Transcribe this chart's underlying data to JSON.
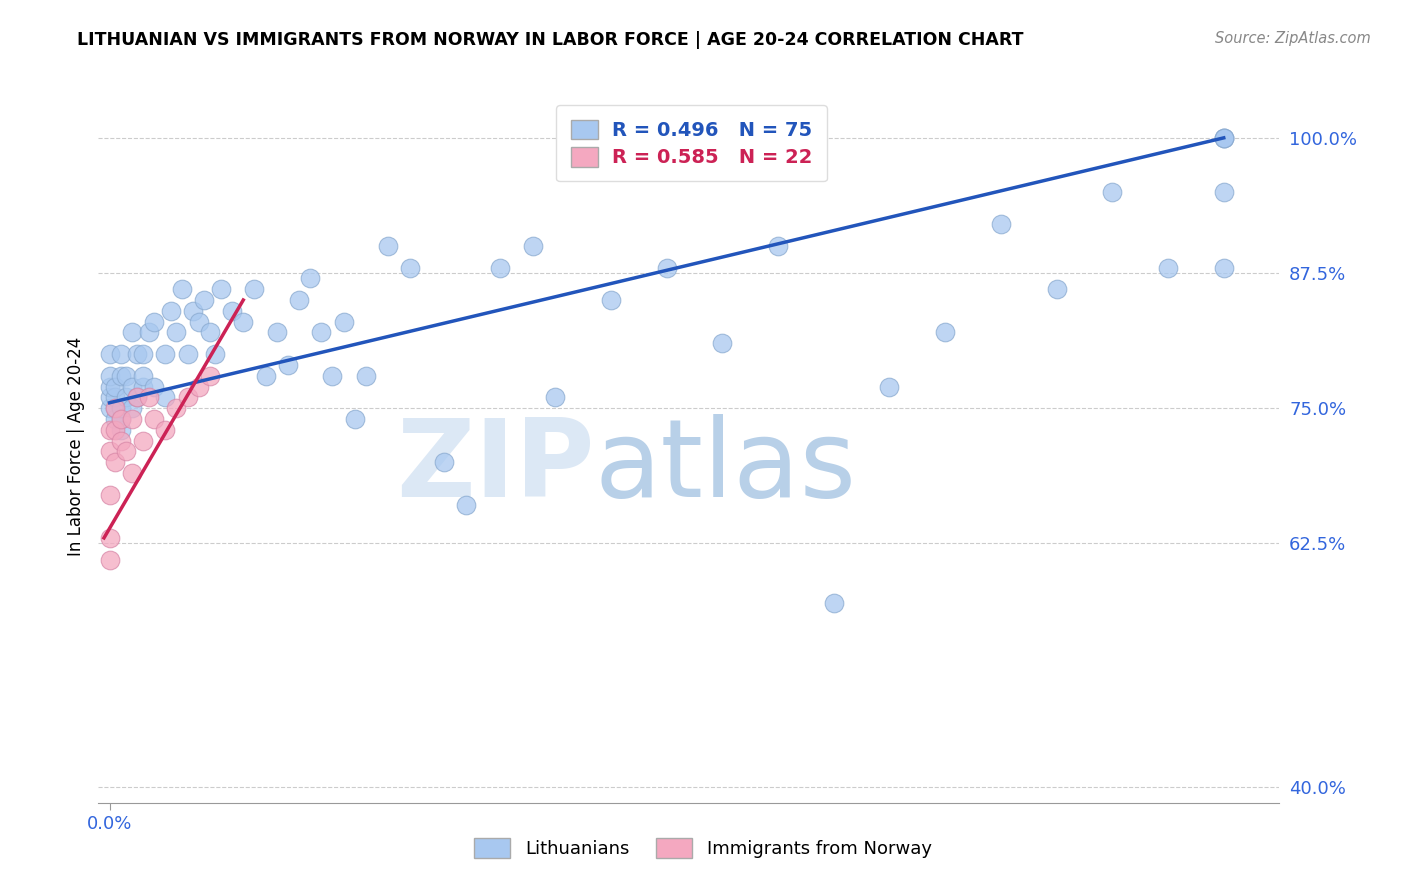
{
  "title": "LITHUANIAN VS IMMIGRANTS FROM NORWAY IN LABOR FORCE | AGE 20-24 CORRELATION CHART",
  "source": "Source: ZipAtlas.com",
  "ylabel": "In Labor Force | Age 20-24",
  "blue_label": "Lithuanians",
  "pink_label": "Immigrants from Norway",
  "blue_R": 0.496,
  "blue_N": 75,
  "pink_R": 0.585,
  "pink_N": 22,
  "blue_color": "#A8C8F0",
  "pink_color": "#F4A8C0",
  "blue_line_color": "#2255BB",
  "pink_line_color": "#CC2255",
  "ytick_color": "#3366DD",
  "xtick_color": "#3366DD",
  "xlim": [
    -0.01,
    1.05
  ],
  "ylim": [
    0.385,
    1.045
  ],
  "yticks": [
    0.4,
    0.625,
    0.75,
    0.875,
    1.0
  ],
  "ytick_labels": [
    "40.0%",
    "62.5%",
    "75.0%",
    "87.5%",
    "100.0%"
  ],
  "xtick_val": 0.0,
  "xtick_label": "0.0%",
  "blue_x": [
    0.0,
    0.0,
    0.0,
    0.0,
    0.0,
    0.005,
    0.005,
    0.005,
    0.005,
    0.01,
    0.01,
    0.01,
    0.01,
    0.01,
    0.015,
    0.015,
    0.02,
    0.02,
    0.02,
    0.025,
    0.025,
    0.03,
    0.03,
    0.03,
    0.035,
    0.04,
    0.04,
    0.05,
    0.05,
    0.055,
    0.06,
    0.065,
    0.07,
    0.075,
    0.08,
    0.085,
    0.09,
    0.095,
    0.1,
    0.11,
    0.12,
    0.13,
    0.14,
    0.15,
    0.16,
    0.17,
    0.18,
    0.19,
    0.2,
    0.21,
    0.22,
    0.23,
    0.25,
    0.27,
    0.3,
    0.32,
    0.35,
    0.38,
    0.4,
    0.45,
    0.5,
    0.55,
    0.6,
    0.65,
    0.7,
    0.75,
    0.8,
    0.85,
    0.9,
    0.95,
    1.0,
    1.0,
    1.0,
    1.0,
    1.0
  ],
  "blue_y": [
    0.75,
    0.76,
    0.77,
    0.78,
    0.8,
    0.74,
    0.75,
    0.76,
    0.77,
    0.73,
    0.74,
    0.75,
    0.78,
    0.8,
    0.76,
    0.78,
    0.75,
    0.77,
    0.82,
    0.76,
    0.8,
    0.77,
    0.78,
    0.8,
    0.82,
    0.77,
    0.83,
    0.76,
    0.8,
    0.84,
    0.82,
    0.86,
    0.8,
    0.84,
    0.83,
    0.85,
    0.82,
    0.8,
    0.86,
    0.84,
    0.83,
    0.86,
    0.78,
    0.82,
    0.79,
    0.85,
    0.87,
    0.82,
    0.78,
    0.83,
    0.74,
    0.78,
    0.9,
    0.88,
    0.7,
    0.66,
    0.88,
    0.9,
    0.76,
    0.85,
    0.88,
    0.81,
    0.9,
    0.57,
    0.77,
    0.82,
    0.92,
    0.86,
    0.95,
    0.88,
    1.0,
    1.0,
    1.0,
    0.95,
    0.88
  ],
  "pink_x": [
    0.0,
    0.0,
    0.0,
    0.0,
    0.0,
    0.005,
    0.005,
    0.005,
    0.01,
    0.01,
    0.015,
    0.02,
    0.02,
    0.025,
    0.03,
    0.035,
    0.04,
    0.05,
    0.06,
    0.07,
    0.08,
    0.09
  ],
  "pink_y": [
    0.61,
    0.63,
    0.67,
    0.71,
    0.73,
    0.7,
    0.73,
    0.75,
    0.72,
    0.74,
    0.71,
    0.69,
    0.74,
    0.76,
    0.72,
    0.76,
    0.74,
    0.73,
    0.75,
    0.76,
    0.77,
    0.78
  ],
  "blue_line_x0": 0.0,
  "blue_line_x1": 1.0,
  "blue_line_y0": 0.755,
  "blue_line_y1": 1.0,
  "pink_line_x0": -0.005,
  "pink_line_x1": 0.12,
  "pink_line_y0": 0.63,
  "pink_line_y1": 0.85
}
